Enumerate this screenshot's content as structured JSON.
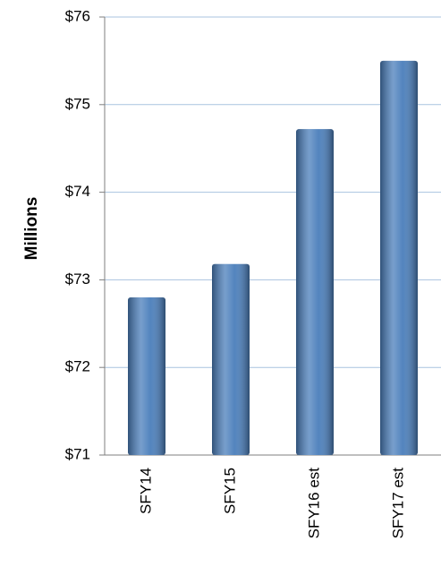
{
  "chart_data": {
    "type": "bar",
    "y_label": "Millions",
    "categories": [
      "SFY14",
      "SFY15",
      "SFY16 est",
      "SFY17 est"
    ],
    "values": [
      72.8,
      73.18,
      74.72,
      75.5
    ],
    "color": "#4a7ebb",
    "ylim": [
      71,
      76
    ],
    "yticks": [
      {
        "value": 71,
        "label": "$71"
      },
      {
        "value": 72,
        "label": "$72"
      },
      {
        "value": 73,
        "label": "$73"
      },
      {
        "value": 74,
        "label": "$74"
      },
      {
        "value": 75,
        "label": "$75"
      },
      {
        "value": 76,
        "label": "$76"
      }
    ],
    "grid": true
  }
}
